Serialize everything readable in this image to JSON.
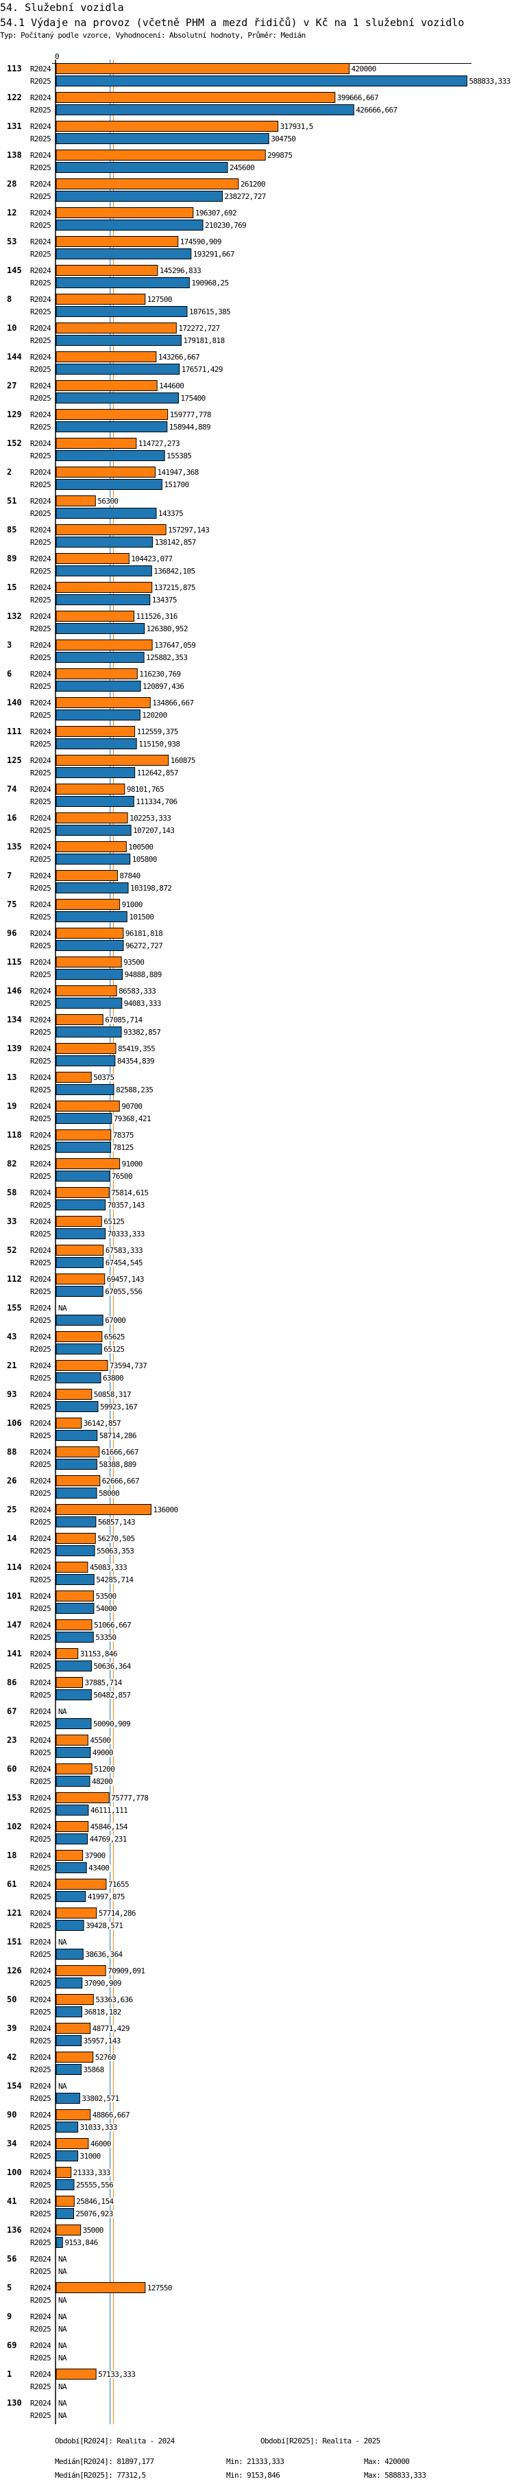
{
  "header": {
    "section": "54. Služební vozidla",
    "title": "54.1 Výdaje na provoz (včetně PHM a mezd řidičů) v Kč na 1 služební vozidlo",
    "subtitle": "Typ: Počítaný podle vzorce, Vyhodnocení: Absolutní hodnoty, Průměr: Medián"
  },
  "chart_data": {
    "type": "bar",
    "orientation": "horizontal",
    "axis_zero_label": "0",
    "xlim": [
      0,
      588833.333
    ],
    "series": [
      {
        "name": "R2024",
        "color": "#ff7f0e"
      },
      {
        "name": "R2025",
        "color": "#1f77b4"
      }
    ],
    "medians": {
      "R2024": 81897.177,
      "R2025": 77312.5
    },
    "groups": [
      {
        "id": "113",
        "R2024": "420000",
        "R2025": "588833,333"
      },
      {
        "id": "122",
        "R2024": "399666,667",
        "R2025": "426666,667"
      },
      {
        "id": "131",
        "R2024": "317931,5",
        "R2025": "304750"
      },
      {
        "id": "138",
        "R2024": "299875",
        "R2025": "245600"
      },
      {
        "id": "28",
        "R2024": "261200",
        "R2025": "238272,727"
      },
      {
        "id": "12",
        "R2024": "196307,692",
        "R2025": "210230,769"
      },
      {
        "id": "53",
        "R2024": "174590,909",
        "R2025": "193291,667"
      },
      {
        "id": "145",
        "R2024": "145296,833",
        "R2025": "190968,25"
      },
      {
        "id": "8",
        "R2024": "127500",
        "R2025": "187615,385"
      },
      {
        "id": "10",
        "R2024": "172272,727",
        "R2025": "179181,818"
      },
      {
        "id": "144",
        "R2024": "143266,667",
        "R2025": "176571,429"
      },
      {
        "id": "27",
        "R2024": "144600",
        "R2025": "175400"
      },
      {
        "id": "129",
        "R2024": "159777,778",
        "R2025": "158944,889"
      },
      {
        "id": "152",
        "R2024": "114727,273",
        "R2025": "155385"
      },
      {
        "id": "2",
        "R2024": "141947,368",
        "R2025": "151700"
      },
      {
        "id": "51",
        "R2024": "56300",
        "R2025": "143375"
      },
      {
        "id": "85",
        "R2024": "157297,143",
        "R2025": "138142,857"
      },
      {
        "id": "89",
        "R2024": "104423,077",
        "R2025": "136842,105"
      },
      {
        "id": "15",
        "R2024": "137215,875",
        "R2025": "134375"
      },
      {
        "id": "132",
        "R2024": "111526,316",
        "R2025": "126380,952"
      },
      {
        "id": "3",
        "R2024": "137647,059",
        "R2025": "125882,353"
      },
      {
        "id": "6",
        "R2024": "116230,769",
        "R2025": "120897,436"
      },
      {
        "id": "140",
        "R2024": "134866,667",
        "R2025": "120200"
      },
      {
        "id": "111",
        "R2024": "112559,375",
        "R2025": "115150,938"
      },
      {
        "id": "125",
        "R2024": "160875",
        "R2025": "112642,857"
      },
      {
        "id": "74",
        "R2024": "98101,765",
        "R2025": "111334,706"
      },
      {
        "id": "16",
        "R2024": "102253,333",
        "R2025": "107207,143"
      },
      {
        "id": "135",
        "R2024": "100500",
        "R2025": "105800"
      },
      {
        "id": "7",
        "R2024": "87840",
        "R2025": "103198,872"
      },
      {
        "id": "75",
        "R2024": "91000",
        "R2025": "101500"
      },
      {
        "id": "96",
        "R2024": "96181,818",
        "R2025": "96272,727"
      },
      {
        "id": "115",
        "R2024": "93500",
        "R2025": "94888,889"
      },
      {
        "id": "146",
        "R2024": "86583,333",
        "R2025": "94083,333"
      },
      {
        "id": "134",
        "R2024": "67085,714",
        "R2025": "93382,857"
      },
      {
        "id": "139",
        "R2024": "85419,355",
        "R2025": "84354,839"
      },
      {
        "id": "13",
        "R2024": "50375",
        "R2025": "82588,235"
      },
      {
        "id": "19",
        "R2024": "90700",
        "R2025": "79368,421"
      },
      {
        "id": "118",
        "R2024": "78375",
        "R2025": "78125"
      },
      {
        "id": "82",
        "R2024": "91000",
        "R2025": "76500"
      },
      {
        "id": "58",
        "R2024": "75814,615",
        "R2025": "70357,143"
      },
      {
        "id": "33",
        "R2024": "65125",
        "R2025": "70333,333"
      },
      {
        "id": "52",
        "R2024": "67583,333",
        "R2025": "67454,545"
      },
      {
        "id": "112",
        "R2024": "69457,143",
        "R2025": "67055,556"
      },
      {
        "id": "155",
        "R2024": "NA",
        "R2025": "67000"
      },
      {
        "id": "43",
        "R2024": "65625",
        "R2025": "65125"
      },
      {
        "id": "21",
        "R2024": "73594,737",
        "R2025": "63800"
      },
      {
        "id": "93",
        "R2024": "50858,317",
        "R2025": "59923,167"
      },
      {
        "id": "106",
        "R2024": "36142,857",
        "R2025": "58714,286"
      },
      {
        "id": "88",
        "R2024": "61666,667",
        "R2025": "58388,889"
      },
      {
        "id": "26",
        "R2024": "62666,667",
        "R2025": "58000"
      },
      {
        "id": "25",
        "R2024": "136000",
        "R2025": "56857,143"
      },
      {
        "id": "14",
        "R2024": "56270,505",
        "R2025": "55063,353"
      },
      {
        "id": "114",
        "R2024": "45083,333",
        "R2025": "54285,714"
      },
      {
        "id": "101",
        "R2024": "53500",
        "R2025": "54000"
      },
      {
        "id": "147",
        "R2024": "51066,667",
        "R2025": "53350"
      },
      {
        "id": "141",
        "R2024": "31153,846",
        "R2025": "50636,364"
      },
      {
        "id": "86",
        "R2024": "37885,714",
        "R2025": "50482,857"
      },
      {
        "id": "67",
        "R2024": "NA",
        "R2025": "50090,909"
      },
      {
        "id": "23",
        "R2024": "45500",
        "R2025": "49000"
      },
      {
        "id": "60",
        "R2024": "51200",
        "R2025": "48200"
      },
      {
        "id": "153",
        "R2024": "75777,778",
        "R2025": "46111,111"
      },
      {
        "id": "102",
        "R2024": "45846,154",
        "R2025": "44769,231"
      },
      {
        "id": "18",
        "R2024": "37900",
        "R2025": "43400"
      },
      {
        "id": "61",
        "R2024": "71655",
        "R2025": "41997,875"
      },
      {
        "id": "121",
        "R2024": "57714,286",
        "R2025": "39428,571"
      },
      {
        "id": "151",
        "R2024": "NA",
        "R2025": "38636,364"
      },
      {
        "id": "126",
        "R2024": "70909,091",
        "R2025": "37090,909"
      },
      {
        "id": "50",
        "R2024": "53363,636",
        "R2025": "36818,182"
      },
      {
        "id": "39",
        "R2024": "48771,429",
        "R2025": "35957,143"
      },
      {
        "id": "42",
        "R2024": "52760",
        "R2025": "35868"
      },
      {
        "id": "154",
        "R2024": "NA",
        "R2025": "33802,571"
      },
      {
        "id": "90",
        "R2024": "48866,667",
        "R2025": "31033,333"
      },
      {
        "id": "34",
        "R2024": "46000",
        "R2025": "31000"
      },
      {
        "id": "100",
        "R2024": "21333,333",
        "R2025": "25555,556"
      },
      {
        "id": "41",
        "R2024": "25846,154",
        "R2025": "25076,923"
      },
      {
        "id": "136",
        "R2024": "35000",
        "R2025": "9153,846"
      },
      {
        "id": "56",
        "R2024": "NA",
        "R2025": "NA"
      },
      {
        "id": "5",
        "R2024": "127550",
        "R2025": "NA"
      },
      {
        "id": "9",
        "R2024": "NA",
        "R2025": "NA"
      },
      {
        "id": "69",
        "R2024": "NA",
        "R2025": "NA"
      },
      {
        "id": "1",
        "R2024": "57133,333",
        "R2025": "NA"
      },
      {
        "id": "130",
        "R2024": "NA",
        "R2025": "NA"
      }
    ]
  },
  "footer": {
    "period_2024": "Období[R2024]: Realita - 2024",
    "period_2025": "Období[R2025]: Realita - 2025",
    "median_2024": "Medián[R2024]: 81897,177",
    "median_2025": "Medián[R2025]: 77312,5",
    "min_2024": "Min: 21333,333",
    "min_2025": "Min: 9153,846",
    "max_2024": "Max: 420000",
    "max_2025": "Max: 588833,333"
  }
}
